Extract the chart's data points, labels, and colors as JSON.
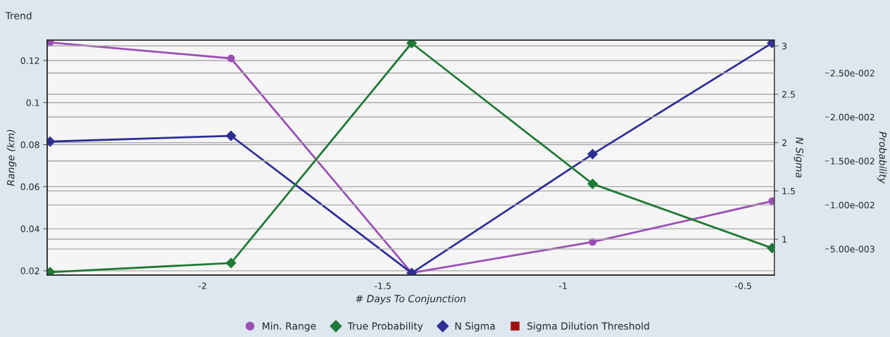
{
  "chart_data": {
    "type": "line",
    "title": "Trend",
    "xlabel": "# Days To Conjunction",
    "ylabel": "Range (km)",
    "y2label": "N Sigma",
    "y3label": "Probability",
    "x": [
      -2.423,
      -1.921,
      -1.42,
      -0.918,
      -0.42
    ],
    "xlim": [
      -2.431,
      -0.414
    ],
    "xticks": [
      -2,
      -1.5,
      -1,
      -0.5
    ],
    "ylim": [
      0.018,
      0.1297
    ],
    "yticks": [
      0.02,
      0.04,
      0.06,
      0.08,
      0.1,
      0.12
    ],
    "y2lim": [
      0.63,
      3.06
    ],
    "y2ticks": [
      1,
      1.5,
      2,
      2.5,
      3
    ],
    "y3lim": [
      0.00204,
      0.02874
    ],
    "y3ticks": [
      {
        "value": 0.005,
        "label": "5.00e-003"
      },
      {
        "value": 0.01,
        "label": "1.00e-002"
      },
      {
        "value": 0.015,
        "label": "1.50e-002"
      },
      {
        "value": 0.02,
        "label": "2.00e-002"
      },
      {
        "value": 0.025,
        "label": "2.50e-002"
      }
    ],
    "grid": true,
    "legend": "bottom",
    "series": [
      {
        "name": "Min. Range",
        "color": "#9b4fb5",
        "marker": "circle",
        "values": [
          0.1286,
          0.121,
          0.019,
          0.0337,
          0.0531
        ]
      },
      {
        "name": "True Probability",
        "color": "#1f7a35",
        "marker": "diamond",
        "axis": "y3",
        "values": [
          0.00236,
          0.0034,
          0.0284,
          0.0124,
          0.0051
        ]
      },
      {
        "name": "N Sigma",
        "color": "#2e2f95",
        "marker": "diamond",
        "axis": "y2",
        "values": [
          2.01,
          2.07,
          0.65,
          1.88,
          3.03
        ]
      },
      {
        "name": "Sigma Dilution Threshold",
        "color": "#a01010",
        "marker": "square",
        "axis": "y2",
        "values": [
          null,
          null,
          null,
          null,
          null
        ]
      }
    ]
  }
}
